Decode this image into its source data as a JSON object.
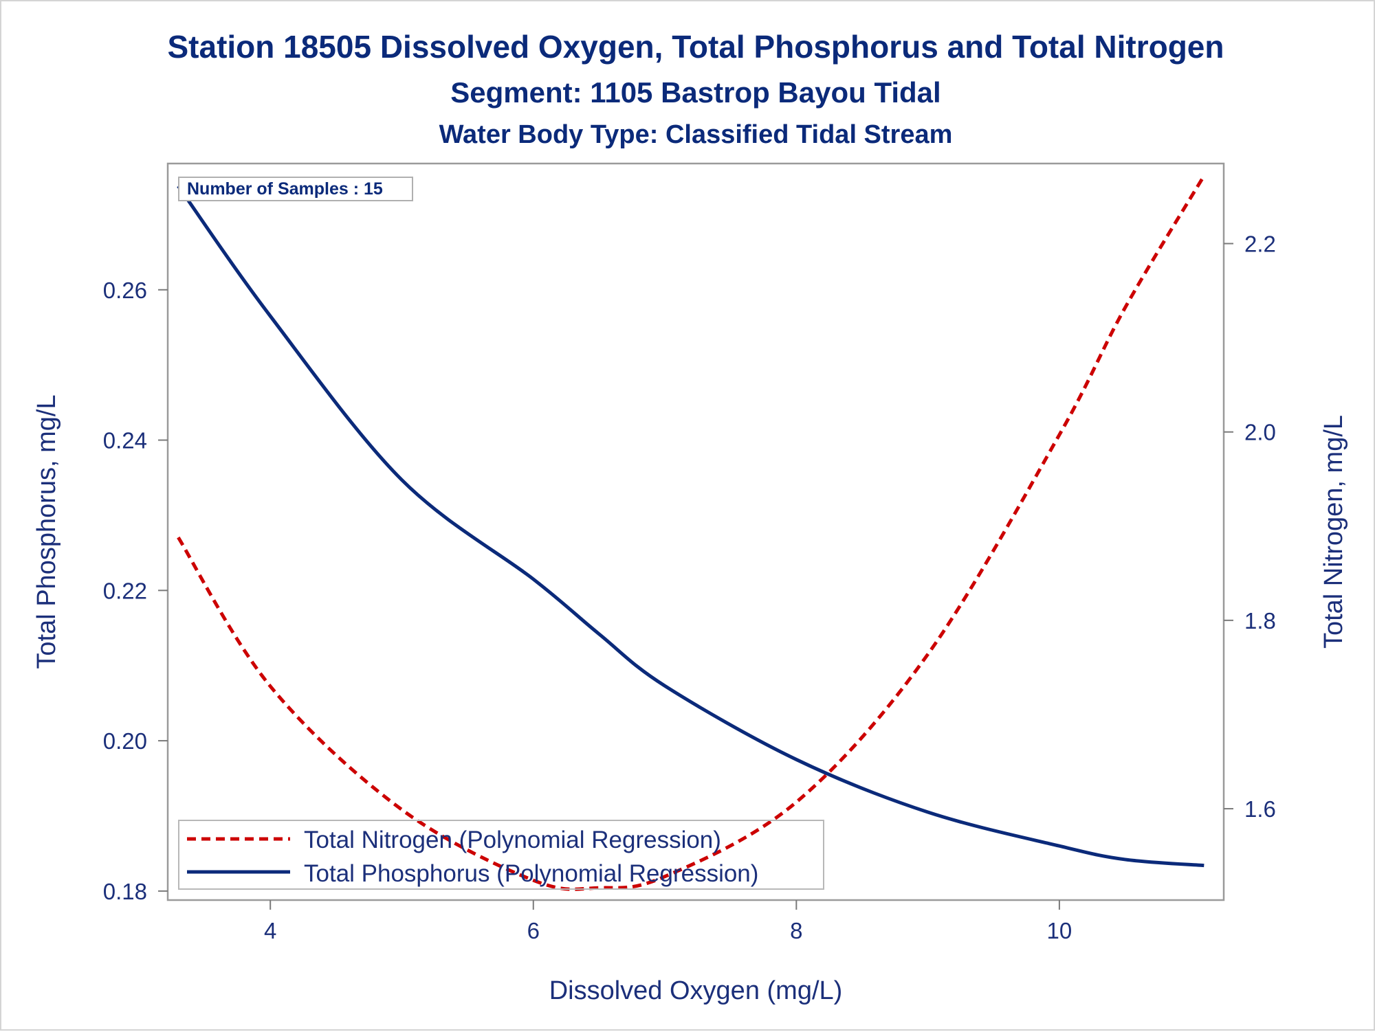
{
  "chart_data": {
    "type": "line",
    "title": "Station 18505  Dissolved Oxygen, Total Phosphorus and Total Nitrogen",
    "subtitle": "Segment: 1105  Bastrop Bayou Tidal",
    "subtitle2": "Water Body Type: Classified Tidal Stream",
    "xlabel": "Dissolved Oxygen (mg/L)",
    "ylabel_left": "Total Phosphorus, mg/L",
    "ylabel_right": "Total Nitrogen, mg/L",
    "annotation": "Number of Samples : 15",
    "xlim": [
      3.22,
      11.25
    ],
    "ylim_left": [
      0.1788,
      0.2768
    ],
    "ylim_right": [
      1.503,
      2.285
    ],
    "x_ticks": [
      "4",
      "6",
      "8",
      "10"
    ],
    "y_left_ticks": [
      "0.18",
      "0.20",
      "0.22",
      "0.24",
      "0.26"
    ],
    "y_right_ticks": [
      "1.6",
      "1.8",
      "2.0",
      "2.2"
    ],
    "x": [
      3.3,
      4.0,
      5.0,
      6.0,
      6.5,
      7.0,
      8.0,
      9.0,
      10.0,
      10.5,
      11.1
    ],
    "series": [
      {
        "name": "Total Nitrogen (Polynomial Regression)",
        "axis": "right",
        "style": "dashed",
        "color": "#cc0000",
        "values": [
          1.888,
          1.73,
          1.599,
          1.524,
          1.516,
          1.528,
          1.607,
          1.764,
          1.997,
          2.132,
          2.272
        ]
      },
      {
        "name": "Total Phosphorus (Polynomial Regression)",
        "axis": "left",
        "style": "solid",
        "color": "#0b2a7a",
        "values": [
          0.2738,
          0.2565,
          0.2347,
          0.2215,
          0.2142,
          0.2073,
          0.1975,
          0.1905,
          0.186,
          0.1842,
          0.1834
        ]
      }
    ],
    "grid": false,
    "legend_position": "bottom-left"
  }
}
